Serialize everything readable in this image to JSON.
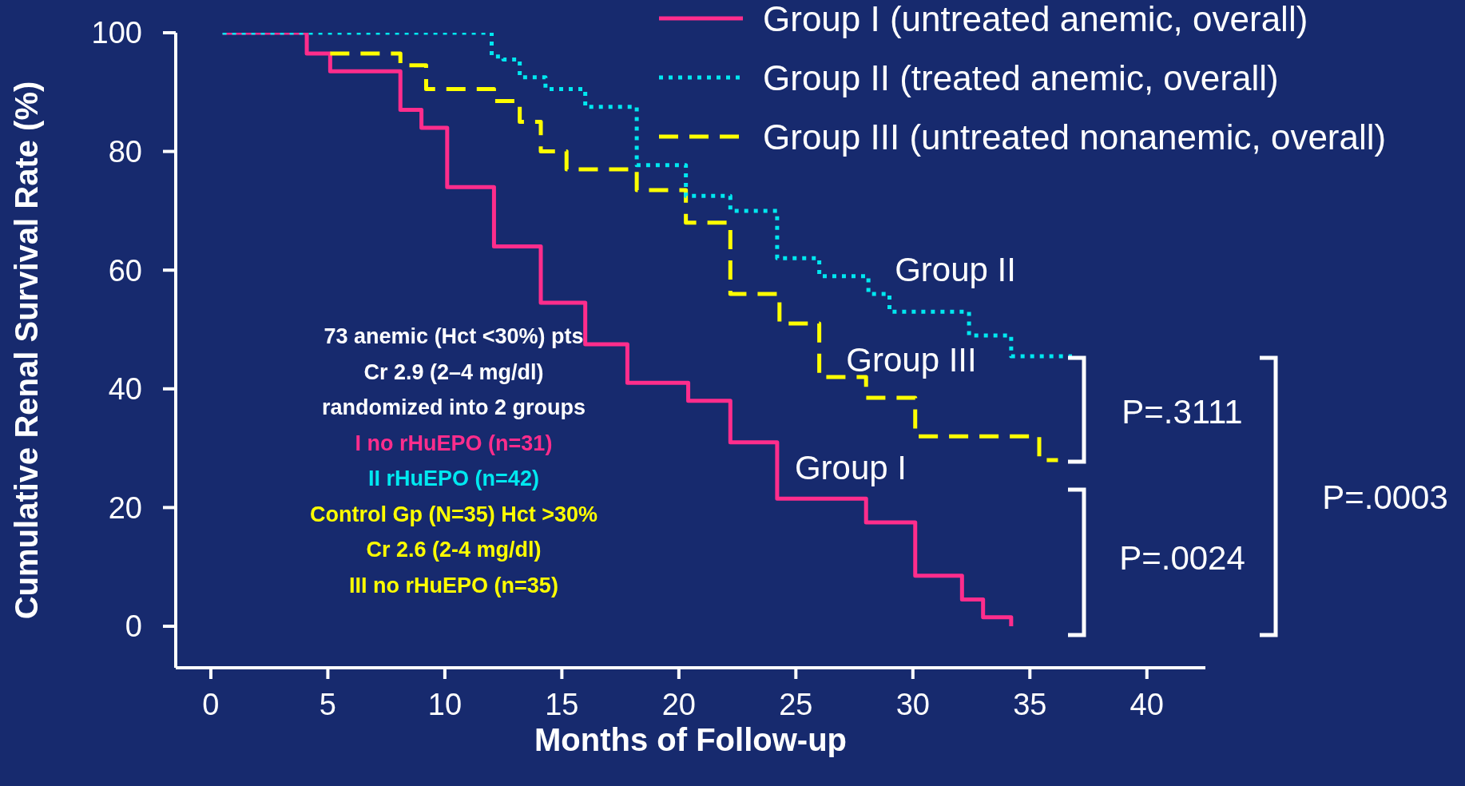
{
  "chart_data": {
    "type": "step",
    "xlabel": "Months of Follow-up",
    "ylabel": "Cumulative Renal Survival Rate (%)",
    "xlim": [
      -1.5,
      42.5
    ],
    "xticks": [
      0,
      5,
      10,
      15,
      20,
      25,
      30,
      35,
      40
    ],
    "ylim": [
      -7,
      100
    ],
    "yticks": [
      0,
      20,
      40,
      60,
      80,
      100
    ],
    "grid": false,
    "legend": "top right",
    "series": [
      {
        "name": "Group I (untreated anemic, overall)",
        "color": "#ff2d8c",
        "line_style": "solid",
        "x": [
          0.5,
          4.1,
          5.1,
          8.1,
          9.0,
          10.1,
          12.1,
          14.1,
          16.0,
          17.8,
          20.4,
          22.2,
          24.2,
          28.0,
          30.1,
          32.1,
          33.0,
          34.2
        ],
        "values": [
          100,
          96.5,
          93.5,
          87,
          84,
          74,
          64,
          54.5,
          47.5,
          41,
          38,
          31,
          21.5,
          17.5,
          8.5,
          4.5,
          1.5,
          0
        ]
      },
      {
        "name": "Group II (treated anemic, overall)",
        "color": "#00e8f0",
        "line_style": "dotted",
        "x": [
          0.5,
          12.0,
          12.5,
          13.2,
          14.3,
          16.0,
          18.2,
          20.3,
          22.2,
          24.2,
          26.0,
          28.1,
          29.0,
          32.4,
          34.2,
          36.8
        ],
        "values": [
          100,
          96,
          95.5,
          92.5,
          90.5,
          87.5,
          77.7,
          72.5,
          70,
          62,
          59,
          56,
          53,
          49,
          45.5,
          45.5
        ]
      },
      {
        "name": "Group III (untreated nonanemic, overall)",
        "color": "#ffff00",
        "line_style": "dashed",
        "x": [
          5.1,
          8.1,
          9.2,
          12.1,
          13.2,
          14.1,
          15.2,
          18.2,
          20.3,
          22.2,
          24.3,
          26.0,
          28.0,
          30.1,
          35.4,
          36.2
        ],
        "values": [
          96.5,
          94.5,
          90.5,
          88.5,
          85,
          80,
          77,
          73.5,
          68,
          56,
          51,
          42,
          38.5,
          32,
          28,
          28
        ]
      }
    ],
    "annotations": [
      "Group II",
      "Group III",
      "Group I",
      "73 anemic  (Hct <30%) pts",
      "Cr 2.9 (2–4 mg/dl)",
      "randomized into 2 groups",
      "I no rHuEPO  (n=31)",
      "II  rHuEPO   (n=42)",
      "Control Gp (N=35) Hct >30%",
      "Cr 2.6 (2-4 mg/dl)",
      "III no rHuEPO (n=35)",
      "P=.3111",
      "P=.0024",
      "P=.0003"
    ]
  }
}
